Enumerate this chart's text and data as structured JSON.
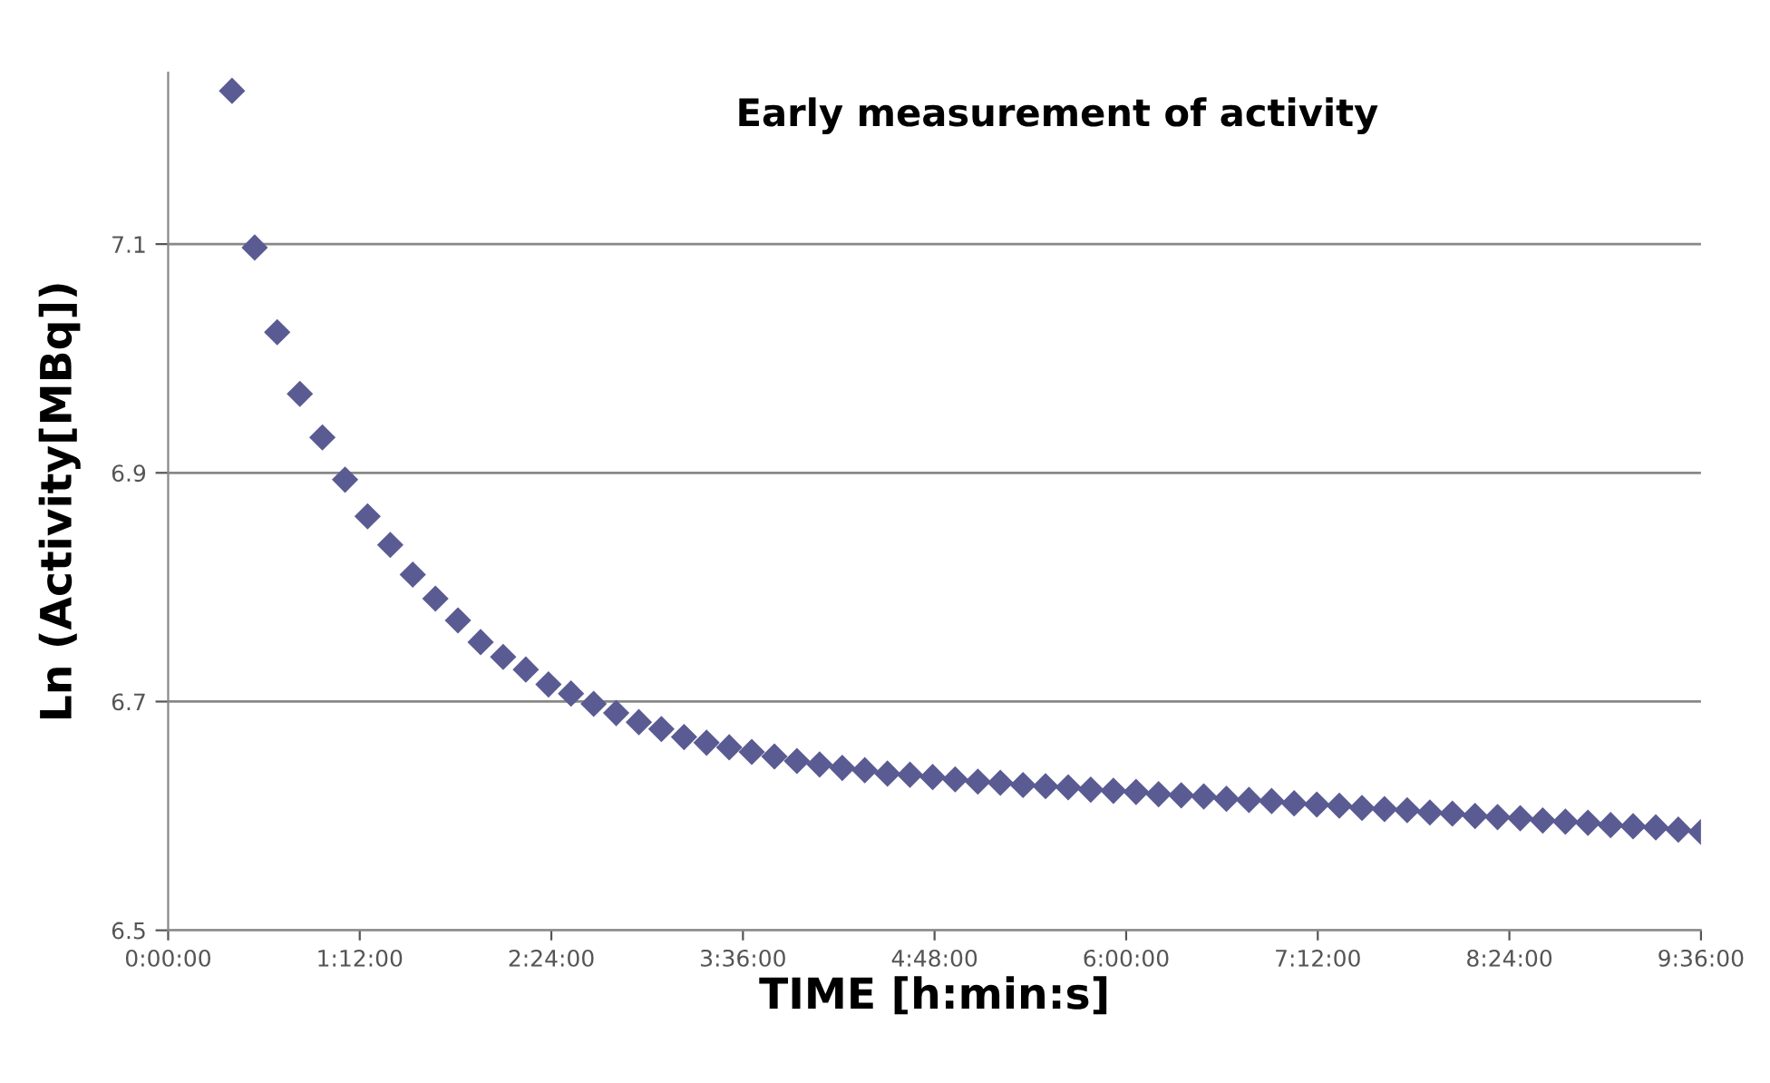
{
  "chart_data": {
    "type": "scatter",
    "title": "Early measurement of activity",
    "xlabel": "TIME [h:min:s]",
    "ylabel": "Ln (Activity[MBq])",
    "x": [
      0.4,
      0.542,
      0.683,
      0.825,
      0.966,
      1.108,
      1.249,
      1.391,
      1.532,
      1.674,
      1.815,
      1.957,
      2.098,
      2.24,
      2.382,
      2.523,
      2.665,
      2.806,
      2.948,
      3.089,
      3.231,
      3.372,
      3.514,
      3.655,
      3.797,
      3.938,
      4.08,
      4.222,
      4.363,
      4.505,
      4.646,
      4.788,
      4.929,
      5.071,
      5.212,
      5.354,
      5.495,
      5.637,
      5.778,
      5.92,
      6.062,
      6.203,
      6.345,
      6.486,
      6.628,
      6.769,
      6.911,
      7.052,
      7.194,
      7.335,
      7.477,
      7.618,
      7.76,
      7.902,
      8.043,
      8.185,
      8.326,
      8.468,
      8.609,
      8.751,
      8.892,
      9.034,
      9.175,
      9.317,
      9.458,
      9.6
    ],
    "series": [
      {
        "color": "#5b5b93",
        "values": [
          7.234,
          7.097,
          7.023,
          6.969,
          6.931,
          6.894,
          6.862,
          6.837,
          6.811,
          6.79,
          6.771,
          6.752,
          6.739,
          6.728,
          6.715,
          6.707,
          6.698,
          6.69,
          6.682,
          6.676,
          6.669,
          6.664,
          6.66,
          6.656,
          6.652,
          6.648,
          6.645,
          6.642,
          6.64,
          6.637,
          6.636,
          6.634,
          6.632,
          6.63,
          6.629,
          6.627,
          6.626,
          6.625,
          6.623,
          6.622,
          6.621,
          6.619,
          6.618,
          6.617,
          6.615,
          6.614,
          6.613,
          6.611,
          6.61,
          6.609,
          6.607,
          6.606,
          6.605,
          6.603,
          6.602,
          6.6,
          6.599,
          6.598,
          6.596,
          6.595,
          6.594,
          6.592,
          6.591,
          6.59,
          6.588,
          6.586
        ]
      }
    ],
    "xlim": [
      0,
      9.6
    ],
    "ylim": [
      6.5,
      7.25
    ],
    "xticks": [
      {
        "value": 0,
        "label": "0:00:00"
      },
      {
        "value": 1.2,
        "label": "1:12:00"
      },
      {
        "value": 2.4,
        "label": "2:24:00"
      },
      {
        "value": 3.6,
        "label": "3:36:00"
      },
      {
        "value": 4.8,
        "label": "4:48:00"
      },
      {
        "value": 6.0,
        "label": "6:00:00"
      },
      {
        "value": 7.2,
        "label": "7:12:00"
      },
      {
        "value": 8.4,
        "label": "8:24:00"
      },
      {
        "value": 9.6,
        "label": "9:36:00"
      }
    ],
    "yticks": [
      6.5,
      6.7,
      6.9,
      7.1
    ],
    "grid": "y",
    "marker": "diamond",
    "legend": false
  }
}
